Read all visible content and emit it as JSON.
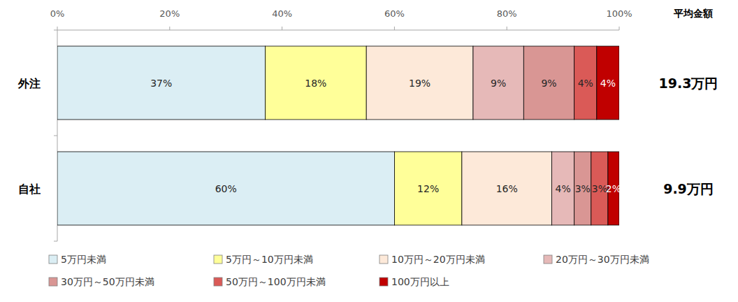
{
  "chart_data": {
    "type": "bar",
    "orientation": "horizontal",
    "stacked": true,
    "data_labels": true,
    "grid": false,
    "legend": "bottom",
    "categories": [
      "外注",
      "自社"
    ],
    "xlim": [
      0,
      100
    ],
    "xticks": [
      {
        "value": 0,
        "label": "0%"
      },
      {
        "value": 20,
        "label": "20%"
      },
      {
        "value": 40,
        "label": "40%"
      },
      {
        "value": 60,
        "label": "60%"
      },
      {
        "value": 80,
        "label": "80%"
      },
      {
        "value": 100,
        "label": "100%"
      }
    ],
    "series": [
      {
        "name": "5万円未満",
        "color": "#dbeef4",
        "values": [
          37,
          60
        ],
        "value_labels": [
          "37%",
          "60%"
        ]
      },
      {
        "name": "5万円～10万円未満",
        "color": "#ffff99",
        "values": [
          18,
          12
        ],
        "value_labels": [
          "18%",
          "12%"
        ]
      },
      {
        "name": "10万円～20万円未満",
        "color": "#fde9d9",
        "values": [
          19,
          16
        ],
        "value_labels": [
          "19%",
          "16%"
        ]
      },
      {
        "name": "20万円～30万円未満",
        "color": "#e6b9b8",
        "values": [
          9,
          4
        ],
        "value_labels": [
          "9%",
          "4%"
        ]
      },
      {
        "name": "30万円～50万円未満",
        "color": "#d99694",
        "values": [
          9,
          3
        ],
        "value_labels": [
          "9%",
          "3%"
        ]
      },
      {
        "name": "50万円～100万円未満",
        "color": "#da5a57",
        "values": [
          4,
          3
        ],
        "value_labels": [
          "4%",
          "3%"
        ]
      },
      {
        "name": "100万円以上",
        "color": "#c00000",
        "values": [
          4,
          2
        ],
        "value_labels": [
          "4%",
          "2%"
        ]
      }
    ],
    "averages": {
      "title": "平均金額",
      "values": [
        19.3,
        9.9
      ],
      "value_labels": [
        "19.3万円",
        "9.9万円"
      ]
    }
  }
}
